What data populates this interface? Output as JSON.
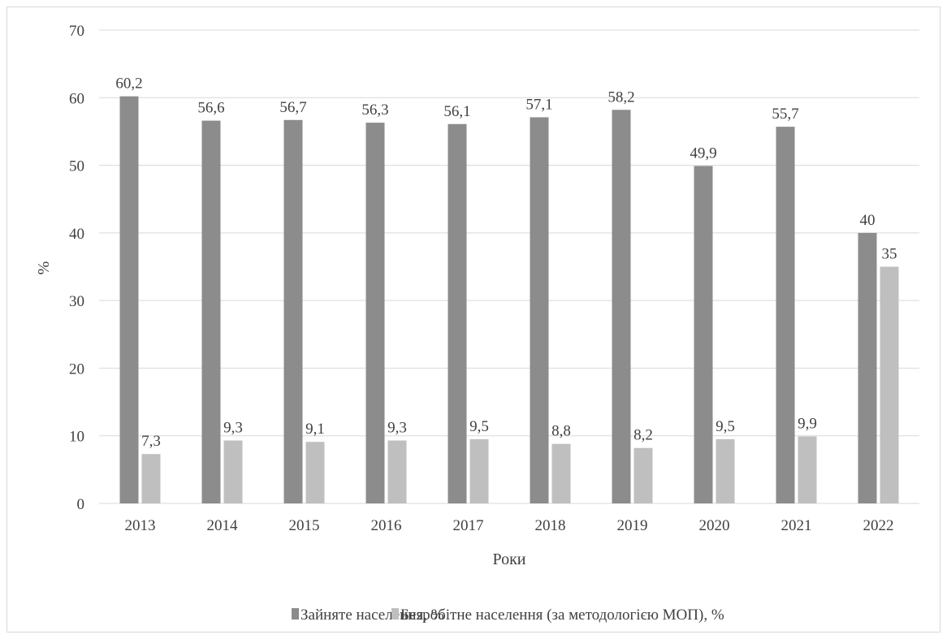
{
  "chart_data": {
    "type": "bar",
    "categories": [
      "2013",
      "2014",
      "2015",
      "2016",
      "2017",
      "2018",
      "2019",
      "2020",
      "2021",
      "2022"
    ],
    "series": [
      {
        "name": "Зайняте населення, %",
        "values": [
          60.2,
          56.6,
          56.7,
          56.3,
          56.1,
          57.1,
          58.2,
          49.9,
          55.7,
          40
        ],
        "labels": [
          "60,2",
          "56,6",
          "56,7",
          "56,3",
          "56,1",
          "57,1",
          "58,2",
          "49,9",
          "55,7",
          "40"
        ],
        "color": "#8c8c8c"
      },
      {
        "name": "Безробітне населення (за методологією МОП), %",
        "values": [
          7.3,
          9.3,
          9.1,
          9.3,
          9.5,
          8.8,
          8.2,
          9.5,
          9.9,
          35
        ],
        "labels": [
          "7,3",
          "9,3",
          "9,1",
          "9,3",
          "9,5",
          "8,8",
          "8,2",
          "9,5",
          "9,9",
          "35"
        ],
        "color": "#bfbfbf"
      }
    ],
    "title": "",
    "xlabel": "Роки",
    "ylabel": "%",
    "ylim": [
      0,
      70
    ],
    "yticks": [
      0,
      10,
      20,
      30,
      40,
      50,
      60,
      70
    ],
    "grid": true,
    "legend": "bottom"
  }
}
